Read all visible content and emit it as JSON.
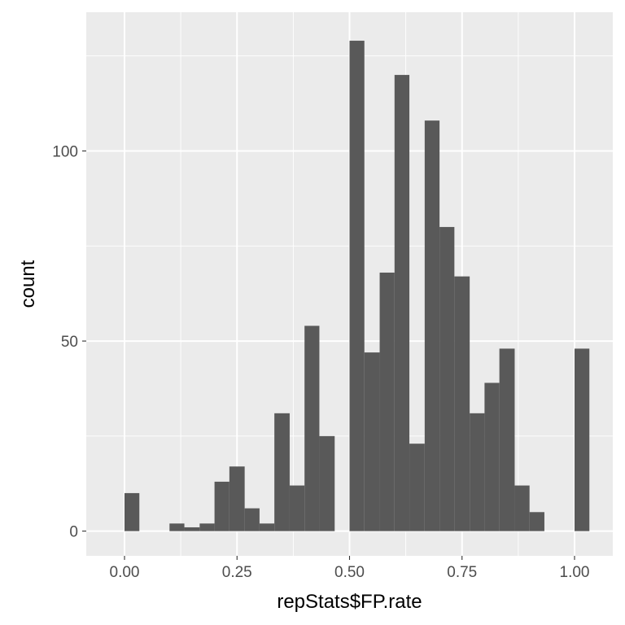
{
  "chart_data": {
    "type": "bar",
    "xlabel": "repStats$FP.rate",
    "ylabel": "count",
    "xlim": [
      -0.085,
      1.085
    ],
    "ylim": [
      -6.5,
      136.5
    ],
    "x_ticks": [
      0.0,
      0.25,
      0.5,
      0.75,
      1.0
    ],
    "x_tick_labels": [
      "0.00",
      "0.25",
      "0.50",
      "0.75",
      "1.00"
    ],
    "y_ticks": [
      0,
      50,
      100
    ],
    "y_tick_labels": [
      "0",
      "50",
      "100"
    ],
    "bin_width": 0.0333,
    "bins": [
      {
        "x0": 0.0,
        "x1": 0.033,
        "count": 10
      },
      {
        "x0": 0.1,
        "x1": 0.133,
        "count": 2
      },
      {
        "x0": 0.133,
        "x1": 0.167,
        "count": 1
      },
      {
        "x0": 0.167,
        "x1": 0.2,
        "count": 2
      },
      {
        "x0": 0.2,
        "x1": 0.233,
        "count": 13
      },
      {
        "x0": 0.233,
        "x1": 0.267,
        "count": 17
      },
      {
        "x0": 0.267,
        "x1": 0.3,
        "count": 6
      },
      {
        "x0": 0.3,
        "x1": 0.333,
        "count": 2
      },
      {
        "x0": 0.333,
        "x1": 0.367,
        "count": 31
      },
      {
        "x0": 0.367,
        "x1": 0.4,
        "count": 12
      },
      {
        "x0": 0.4,
        "x1": 0.433,
        "count": 54
      },
      {
        "x0": 0.433,
        "x1": 0.467,
        "count": 25
      },
      {
        "x0": 0.5,
        "x1": 0.533,
        "count": 129
      },
      {
        "x0": 0.533,
        "x1": 0.567,
        "count": 47
      },
      {
        "x0": 0.567,
        "x1": 0.6,
        "count": 68
      },
      {
        "x0": 0.6,
        "x1": 0.633,
        "count": 120
      },
      {
        "x0": 0.633,
        "x1": 0.667,
        "count": 23
      },
      {
        "x0": 0.667,
        "x1": 0.7,
        "count": 108
      },
      {
        "x0": 0.7,
        "x1": 0.733,
        "count": 80
      },
      {
        "x0": 0.733,
        "x1": 0.767,
        "count": 67
      },
      {
        "x0": 0.767,
        "x1": 0.8,
        "count": 31
      },
      {
        "x0": 0.8,
        "x1": 0.833,
        "count": 39
      },
      {
        "x0": 0.833,
        "x1": 0.867,
        "count": 48
      },
      {
        "x0": 0.867,
        "x1": 0.9,
        "count": 12
      },
      {
        "x0": 0.9,
        "x1": 0.933,
        "count": 5
      },
      {
        "x0": 1.0,
        "x1": 1.033,
        "count": 48
      }
    ],
    "grid": true,
    "colors": {
      "panel": "#ebebeb",
      "grid_major": "#ffffff",
      "bar_fill": "#595959",
      "tick_text": "#4d4d4d",
      "tick_mark": "#333333"
    }
  }
}
